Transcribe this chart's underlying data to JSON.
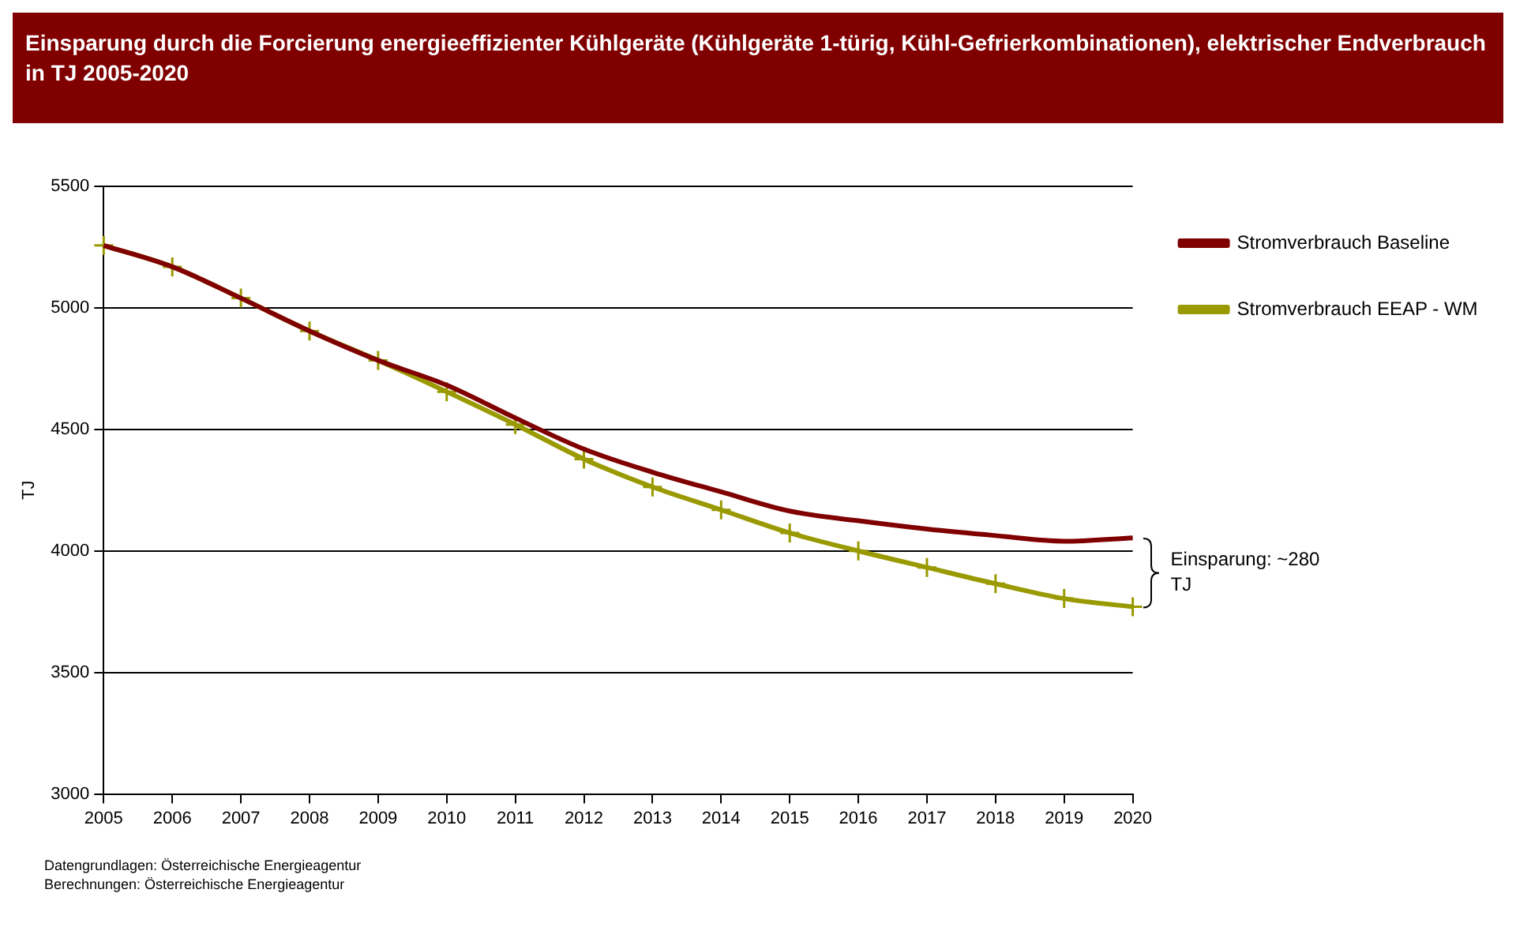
{
  "chart_data": {
    "type": "line",
    "title": "Einsparung durch die Forcierung energieeffizienter Kühlgeräte (Kühlgeräte 1-türig, Kühl-Gefrierkombinationen), elektrischer Endverbrauch in TJ 2005-2020",
    "ylabel": "TJ",
    "categories": [
      "2005",
      "2006",
      "2007",
      "2008",
      "2009",
      "2010",
      "2011",
      "2012",
      "2013",
      "2014",
      "2015",
      "2016",
      "2017",
      "2018",
      "2019",
      "2020"
    ],
    "series": [
      {
        "name": "Stromverbrauch Baseline",
        "color": "#800000",
        "marker": "none",
        "values": [
          5257,
          5169,
          5040,
          4905,
          4784,
          4682,
          4547,
          4419,
          4324,
          4243,
          4164,
          4124,
          4090,
          4063,
          4040,
          4054
        ]
      },
      {
        "name": "Stromverbrauch EEAP - WM",
        "color": "#999900",
        "marker": "cross",
        "values": [
          5257,
          5169,
          5040,
          4905,
          4784,
          4655,
          4520,
          4378,
          4263,
          4169,
          4074,
          4000,
          3932,
          3865,
          3804,
          3770
        ]
      }
    ],
    "ylim": [
      3000,
      5500
    ],
    "yticks": [
      3000,
      3500,
      4000,
      4500,
      5000,
      5500
    ],
    "grid": "y",
    "legend": "top right",
    "annotations": [
      "Einsparung: ~280 TJ",
      "Datengrundlagen: Österreichische Energieagentur",
      "Berechnungen: Österreichische Energieagentur"
    ]
  }
}
